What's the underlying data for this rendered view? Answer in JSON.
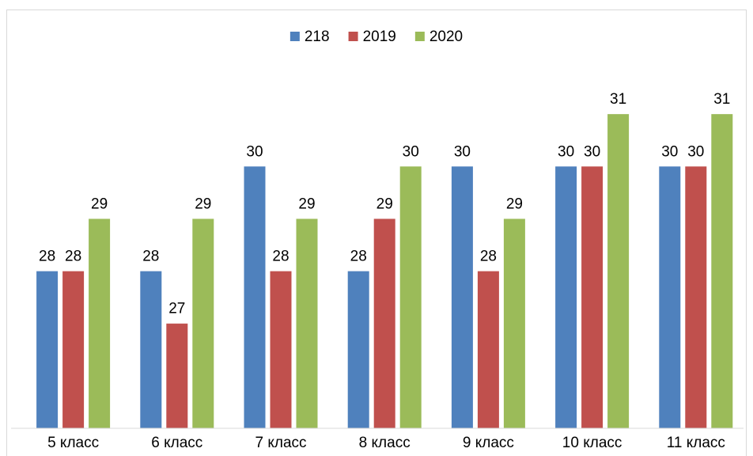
{
  "chart_data": {
    "type": "bar",
    "categories": [
      "5 класс",
      "6 класс",
      "7 класс",
      "8 класс",
      "9 класс",
      "10 класс",
      "11 класс"
    ],
    "series": [
      {
        "name": "218",
        "color": "#4f81bd",
        "values": [
          28,
          28,
          30,
          28,
          30,
          30,
          30
        ]
      },
      {
        "name": "2019",
        "color": "#c0504d",
        "values": [
          28,
          27,
          28,
          29,
          28,
          30,
          30
        ]
      },
      {
        "name": "2020",
        "color": "#9bbb59",
        "values": [
          29,
          29,
          29,
          30,
          29,
          31,
          31
        ]
      }
    ],
    "ylim": [
      25,
      32
    ],
    "legend": "top"
  }
}
